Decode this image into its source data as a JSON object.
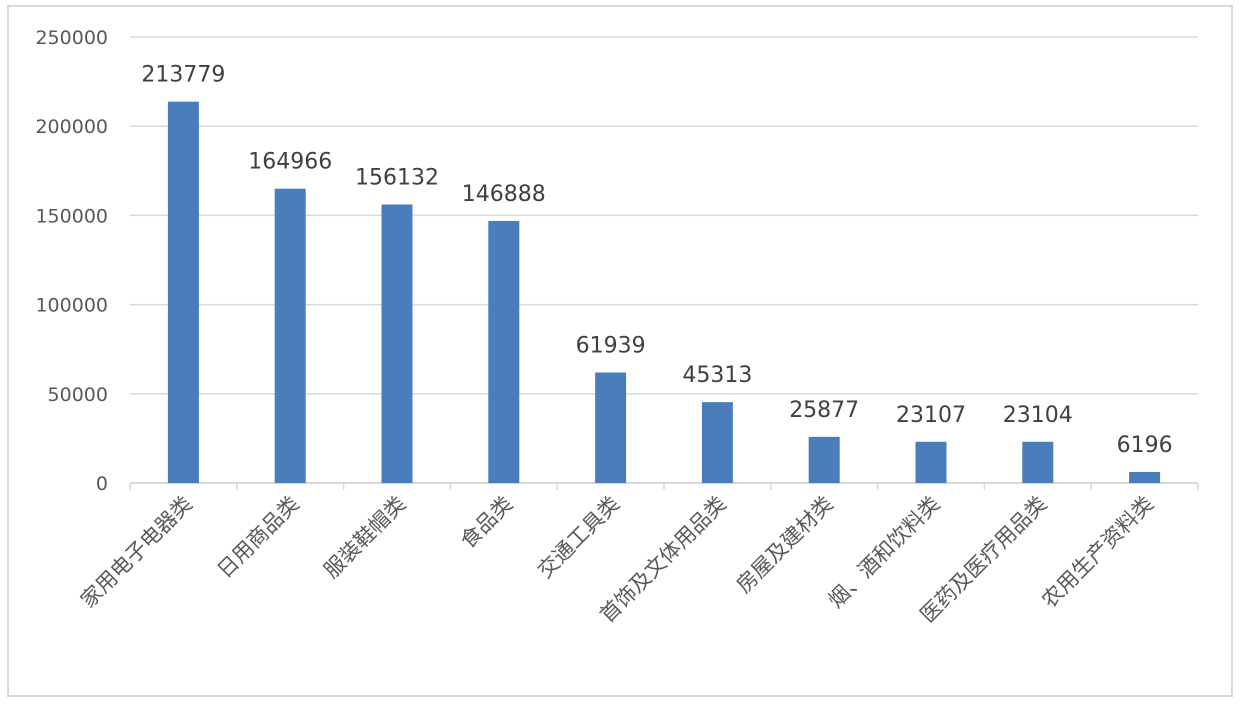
{
  "chart_data": {
    "type": "bar",
    "categories": [
      "家用电子电器类",
      "日用商品类",
      "服装鞋帽类",
      "食品类",
      "交通工具类",
      "首饰及文体用品类",
      "房屋及建材类",
      "烟、酒和饮料类",
      "医药及医疗用品类",
      "农用生产资料类"
    ],
    "values": [
      213779,
      164966,
      156132,
      146888,
      61939,
      45313,
      25877,
      23107,
      23104,
      6196
    ],
    "data_labels": [
      "213779",
      "164966",
      "156132",
      "146888",
      "61939",
      "45313",
      "25877",
      "23107",
      "23104",
      "6196"
    ],
    "y_ticks": [
      0,
      50000,
      100000,
      150000,
      200000,
      250000
    ],
    "y_tick_labels": [
      "0",
      "50000",
      "100000",
      "150000",
      "200000",
      "250000"
    ],
    "ylim": [
      0,
      250000
    ],
    "grid": true,
    "legend": "none",
    "bar_color": "#4a7ebb",
    "grid_color": "#d9d9d9"
  }
}
